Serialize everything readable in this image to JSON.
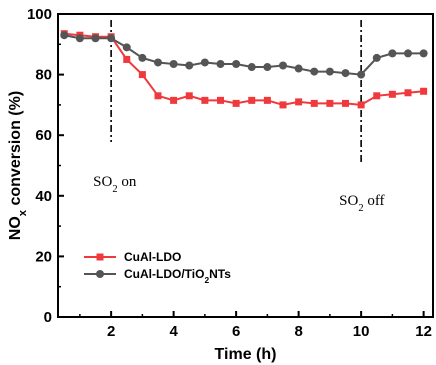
{
  "chart_data": {
    "type": "line",
    "xlabel": "Time (h)",
    "ylabel": "NOx conversion (%)",
    "xlim": [
      0.3,
      12.3
    ],
    "ylim": [
      0,
      100
    ],
    "xticks": [
      2,
      4,
      6,
      8,
      10,
      12
    ],
    "yticks": [
      0,
      20,
      40,
      60,
      80,
      100
    ],
    "grid": false,
    "legend_position": "lower-left",
    "x": [
      0.5,
      1,
      1.5,
      2,
      2.5,
      3,
      3.5,
      4,
      4.5,
      5,
      5.5,
      6,
      6.5,
      7,
      7.5,
      8,
      8.5,
      9,
      9.5,
      10,
      10.5,
      11,
      11.5,
      12
    ],
    "series": [
      {
        "name": "CuAl-LDO",
        "color": "#f0393d",
        "marker": "square",
        "values": [
          93.5,
          93,
          92.5,
          92.5,
          85,
          80,
          73,
          71.5,
          73,
          71.5,
          71.5,
          70.5,
          71.5,
          71.5,
          70,
          71,
          70.5,
          70.5,
          70.5,
          70,
          73,
          73.5,
          74,
          74.5
        ]
      },
      {
        "name": "CuAl-LDO/TiO2NTs",
        "color": "#555555",
        "marker": "circle",
        "values": [
          93,
          92,
          92,
          92,
          89,
          85.5,
          84,
          83.5,
          83,
          84,
          83.5,
          83.5,
          82.5,
          82.5,
          83,
          82,
          81,
          81,
          80.5,
          80,
          85.5,
          87,
          87,
          87
        ]
      }
    ],
    "annotations": [
      {
        "text_main": "SO",
        "text_sub": "2",
        "text_rest": " on",
        "x": 2
      },
      {
        "text_main": "SO",
        "text_sub": "2",
        "text_rest": " off",
        "x": 10
      }
    ],
    "ylabel_parts": {
      "main": "NO",
      "sub": "x",
      "rest": " conversion (%)"
    },
    "legend_labels": [
      {
        "main": "CuAl-LDO",
        "sub": "",
        "rest": ""
      },
      {
        "main": "CuAl-LDO/TiO",
        "sub": "2",
        "rest": "NTs"
      }
    ]
  }
}
